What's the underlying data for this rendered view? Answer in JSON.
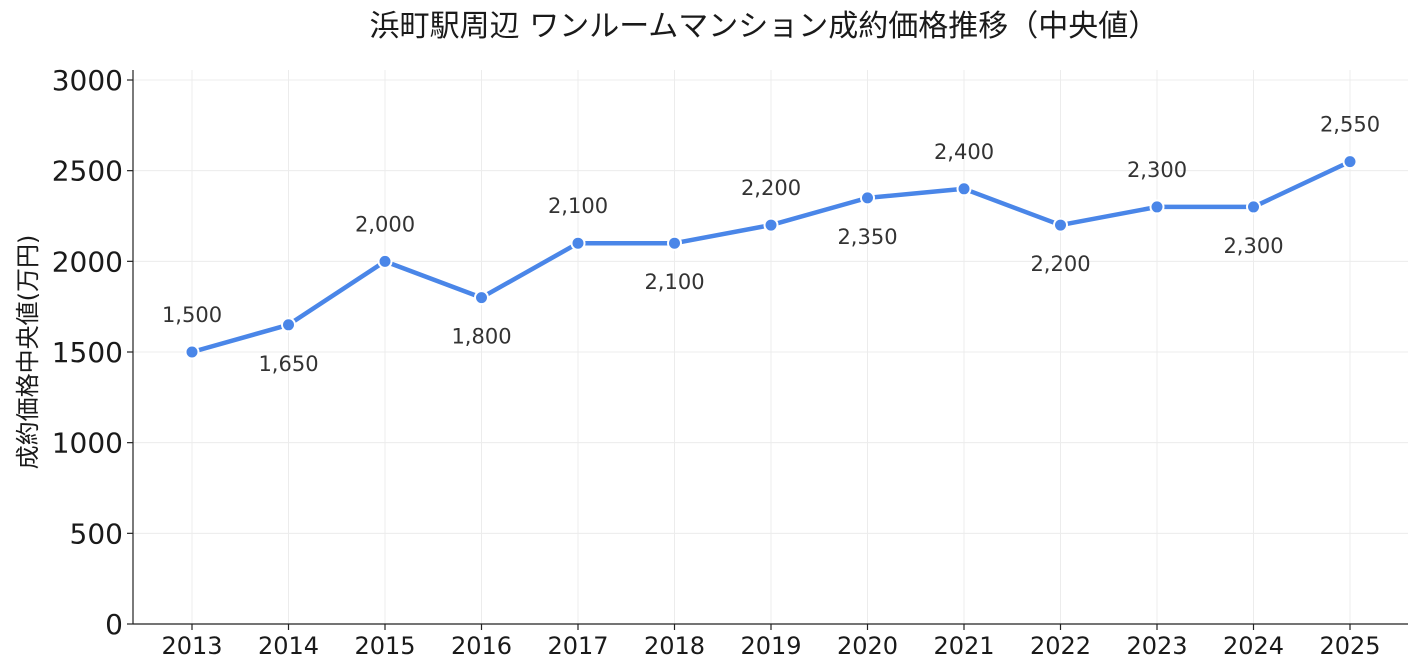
{
  "chart_data": {
    "type": "line",
    "title": "浜町駅周辺 ワンルームマンション成約価格推移（中央値）",
    "xlabel": "",
    "ylabel": "成約価格中央値(万円)",
    "categories": [
      "2013",
      "2014",
      "2015",
      "2016",
      "2017",
      "2018",
      "2019",
      "2020",
      "2021",
      "2022",
      "2023",
      "2024",
      "2025"
    ],
    "series": [
      {
        "values": [
          1500,
          1650,
          2000,
          1800,
          2100,
          2100,
          2200,
          2350,
          2400,
          2200,
          2300,
          2300,
          2550
        ],
        "data_labels": [
          "1,500",
          "1,650",
          "2,000",
          "1,800",
          "2,100",
          "2,100",
          "2,200",
          "2,350",
          "2,400",
          "2,200",
          "2,300",
          "2,300",
          "2,550"
        ],
        "label_positions": [
          "above",
          "below",
          "above",
          "below",
          "above",
          "below",
          "above",
          "below",
          "above",
          "below",
          "above",
          "below",
          "above"
        ],
        "color": "#4a86e8"
      }
    ],
    "ylim": [
      0,
      3000
    ],
    "yticks": [
      0,
      500,
      1000,
      1500,
      2000,
      2500,
      3000
    ],
    "grid": true,
    "legend": "none"
  }
}
